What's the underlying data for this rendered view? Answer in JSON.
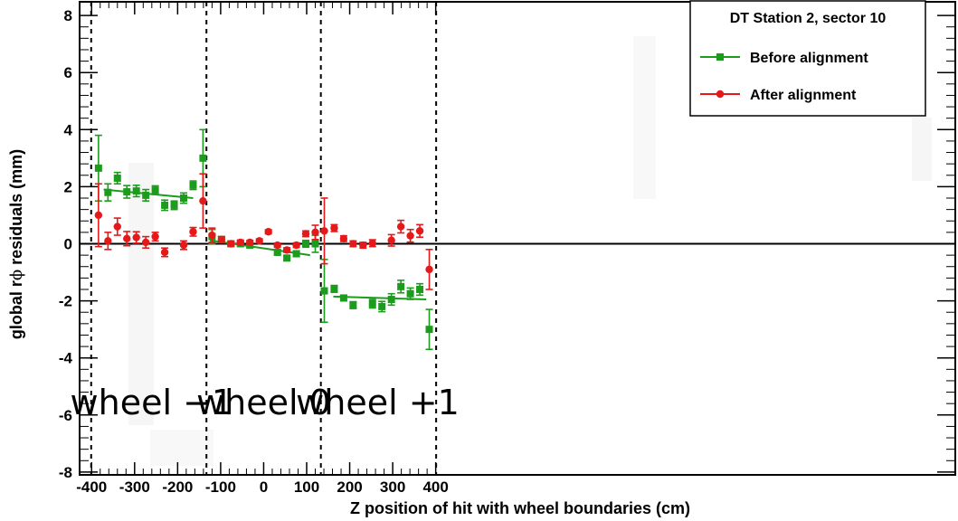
{
  "chart_data": {
    "type": "scatter",
    "xlabel": "Z position of hit with wheel boundaries (cm)",
    "ylabel_prefix": "global r",
    "ylabel_symbol": "ϕ",
    "ylabel_suffix": " residuals (mm)",
    "xlim": [
      -410,
      410
    ],
    "ylim": [
      -8,
      8.5
    ],
    "xticks": [
      -400,
      -300,
      -200,
      -100,
      0,
      100,
      200,
      300,
      400
    ],
    "yticks": [
      -8,
      -6,
      -4,
      -2,
      0,
      2,
      4,
      6,
      8
    ],
    "grid": false,
    "legend_position": "top-right",
    "legend_title": "DT Station 2, sector 10",
    "boundaries_x": [
      -401,
      -133,
      133,
      401
    ],
    "region_labels": [
      {
        "text": "wheel −1",
        "x": -260
      },
      {
        "text": "wheel 0",
        "x": 0
      },
      {
        "text": "wheel +1",
        "x": 265
      }
    ],
    "series": [
      {
        "name": "Before alignment",
        "color": "#1c9c1c",
        "marker": "square",
        "points": [
          {
            "x": -384,
            "y": 2.65,
            "err": 1.15
          },
          {
            "x": -362,
            "y": 1.8,
            "err": 0.3
          },
          {
            "x": -340,
            "y": 2.3,
            "err": 0.2
          },
          {
            "x": -318,
            "y": 1.82,
            "err": 0.22
          },
          {
            "x": -296,
            "y": 1.85,
            "err": 0.2
          },
          {
            "x": -274,
            "y": 1.7,
            "err": 0.2
          },
          {
            "x": -252,
            "y": 1.88,
            "err": 0.15
          },
          {
            "x": -230,
            "y": 1.35,
            "err": 0.18
          },
          {
            "x": -208,
            "y": 1.35,
            "err": 0.15
          },
          {
            "x": -186,
            "y": 1.6,
            "err": 0.18
          },
          {
            "x": -164,
            "y": 2.05,
            "err": 0.15
          },
          {
            "x": -141,
            "y": 3.0,
            "err": 1.0
          },
          {
            "x": -120,
            "y": 0.25,
            "err": 0.25
          },
          {
            "x": -98,
            "y": 0.15,
            "err": 0.1
          },
          {
            "x": -76,
            "y": 0.0,
            "err": 0.08
          },
          {
            "x": -54,
            "y": 0.0,
            "err": 0.08
          },
          {
            "x": -32,
            "y": -0.05,
            "err": 0.07
          },
          {
            "x": 32,
            "y": -0.3,
            "err": 0.07
          },
          {
            "x": 54,
            "y": -0.5,
            "err": 0.08
          },
          {
            "x": 76,
            "y": -0.35,
            "err": 0.1
          },
          {
            "x": 98,
            "y": 0.0,
            "err": 0.12
          },
          {
            "x": 120,
            "y": 0.0,
            "err": 0.3
          },
          {
            "x": 141,
            "y": -1.65,
            "err": 1.1
          },
          {
            "x": 164,
            "y": -1.58,
            "err": 0.12
          },
          {
            "x": 186,
            "y": -1.9,
            "err": 0.1
          },
          {
            "x": 208,
            "y": -2.15,
            "err": 0.12
          },
          {
            "x": 253,
            "y": -2.1,
            "err": 0.15
          },
          {
            "x": 275,
            "y": -2.2,
            "err": 0.18
          },
          {
            "x": 297,
            "y": -1.95,
            "err": 0.2
          },
          {
            "x": 319,
            "y": -1.5,
            "err": 0.22
          },
          {
            "x": 341,
            "y": -1.75,
            "err": 0.2
          },
          {
            "x": 363,
            "y": -1.6,
            "err": 0.2
          },
          {
            "x": 385,
            "y": -3.0,
            "err": 0.7
          }
        ],
        "fit_lines": [
          {
            "x1": -372,
            "y1": 1.9,
            "x2": -164,
            "y2": 1.6
          },
          {
            "x1": -125,
            "y1": 0.12,
            "x2": 108,
            "y2": -0.4
          },
          {
            "x1": 162,
            "y1": -1.85,
            "x2": 378,
            "y2": -1.95
          }
        ]
      },
      {
        "name": "After alignment",
        "color": "#e41a1a",
        "marker": "circle",
        "points": [
          {
            "x": -384,
            "y": 1.0,
            "err": 1.1
          },
          {
            "x": -362,
            "y": 0.1,
            "err": 0.3
          },
          {
            "x": -340,
            "y": 0.6,
            "err": 0.3
          },
          {
            "x": -318,
            "y": 0.18,
            "err": 0.25
          },
          {
            "x": -296,
            "y": 0.22,
            "err": 0.2
          },
          {
            "x": -274,
            "y": 0.05,
            "err": 0.2
          },
          {
            "x": -252,
            "y": 0.25,
            "err": 0.15
          },
          {
            "x": -230,
            "y": -0.3,
            "err": 0.15
          },
          {
            "x": -186,
            "y": -0.05,
            "err": 0.15
          },
          {
            "x": -164,
            "y": 0.42,
            "err": 0.15
          },
          {
            "x": -141,
            "y": 1.5,
            "err": 0.95
          },
          {
            "x": -120,
            "y": 0.3,
            "err": 0.25
          },
          {
            "x": -98,
            "y": 0.15,
            "err": 0.1
          },
          {
            "x": -76,
            "y": 0.0,
            "err": 0.08
          },
          {
            "x": -54,
            "y": 0.05,
            "err": 0.08
          },
          {
            "x": -32,
            "y": 0.05,
            "err": 0.07
          },
          {
            "x": -10,
            "y": 0.1,
            "err": 0.07
          },
          {
            "x": 11,
            "y": 0.42,
            "err": 0.07
          },
          {
            "x": 32,
            "y": -0.05,
            "err": 0.07
          },
          {
            "x": 54,
            "y": -0.22,
            "err": 0.08
          },
          {
            "x": 76,
            "y": -0.05,
            "err": 0.08
          },
          {
            "x": 98,
            "y": 0.35,
            "err": 0.1
          },
          {
            "x": 120,
            "y": 0.4,
            "err": 0.25
          },
          {
            "x": 141,
            "y": 0.45,
            "err": 1.15
          },
          {
            "x": 164,
            "y": 0.55,
            "err": 0.12
          },
          {
            "x": 186,
            "y": 0.18,
            "err": 0.1
          },
          {
            "x": 208,
            "y": 0.0,
            "err": 0.1
          },
          {
            "x": 231,
            "y": -0.05,
            "err": 0.1
          },
          {
            "x": 253,
            "y": 0.02,
            "err": 0.12
          },
          {
            "x": 297,
            "y": 0.12,
            "err": 0.2
          },
          {
            "x": 319,
            "y": 0.6,
            "err": 0.22
          },
          {
            "x": 341,
            "y": 0.28,
            "err": 0.22
          },
          {
            "x": 363,
            "y": 0.45,
            "err": 0.22
          },
          {
            "x": 385,
            "y": -0.9,
            "err": 0.7
          }
        ]
      }
    ]
  }
}
